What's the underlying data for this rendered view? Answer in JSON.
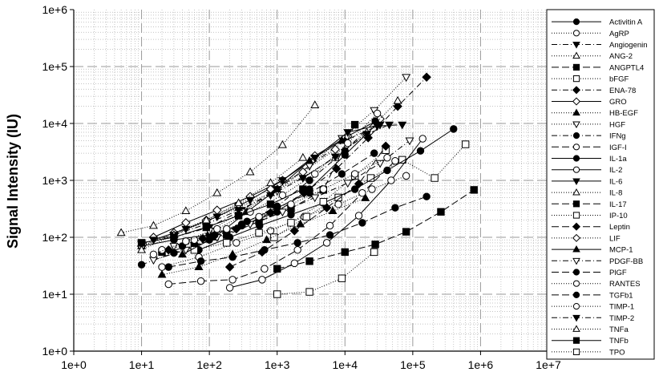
{
  "chart_data": {
    "type": "scatter",
    "title": "",
    "xlabel": "",
    "ylabel": "Signal Intensity (IU)",
    "x_scale": "log",
    "y_scale": "log",
    "xlim": [
      1,
      10000000
    ],
    "ylim": [
      1,
      1000000
    ],
    "x_tick_labels": [
      "1e+0",
      "1e+1",
      "1e+2",
      "1e+3",
      "1e+4",
      "1e+5",
      "1e+6",
      "1e+7"
    ],
    "y_tick_labels": [
      "1e+0",
      "1e+1",
      "1e+2",
      "1e+3",
      "1e+4",
      "1e+5",
      "1e+6"
    ],
    "grid": true,
    "legend_position": "right",
    "series": [
      {
        "name": "Activitin A",
        "marker": "circle",
        "fill": "filled",
        "dash": "solid",
        "x": [
          10,
          30,
          100,
          300,
          1000,
          3000,
          10000,
          30000
        ],
        "y": [
          70,
          90,
          110,
          160,
          280,
          700,
          2800,
          10000
        ]
      },
      {
        "name": "AgRP",
        "marker": "circle",
        "fill": "open",
        "dash": "dot",
        "x": [
          20,
          70,
          250,
          800,
          2500,
          8000,
          25000,
          80000
        ],
        "y": [
          30,
          45,
          80,
          130,
          230,
          380,
          700,
          1200
        ]
      },
      {
        "name": "Angiogenin",
        "marker": "triangle-down",
        "fill": "filled",
        "dash": "dashdot",
        "x": [
          10,
          30,
          100,
          300,
          1000,
          3000,
          10000,
          30000,
          70000
        ],
        "y": [
          80,
          100,
          150,
          300,
          700,
          1800,
          5000,
          9000,
          9500
        ]
      },
      {
        "name": "ANG-2",
        "marker": "triangle-up",
        "fill": "open",
        "dash": "dot",
        "x": [
          5,
          15,
          45,
          130,
          400,
          1200,
          3600
        ],
        "y": [
          120,
          160,
          290,
          600,
          1400,
          4200,
          21000
        ]
      },
      {
        "name": "ANGPTL4",
        "marker": "square",
        "fill": "filled",
        "dash": "longdash",
        "x": [
          1000,
          3000,
          10000,
          28000,
          80000,
          260000,
          800000
        ],
        "y": [
          28,
          38,
          55,
          75,
          125,
          280,
          680
        ]
      },
      {
        "name": "bFGF",
        "marker": "square",
        "fill": "open",
        "dash": "dot",
        "x": [
          900,
          2700,
          8000,
          24000,
          70000,
          210000,
          600000
        ],
        "y": [
          100,
          230,
          500,
          1100,
          2300,
          1100,
          4300
        ]
      },
      {
        "name": "ENA-78",
        "marker": "diamond",
        "fill": "filled",
        "dash": "dashdot",
        "x": [
          25,
          80,
          250,
          800,
          2500,
          7500,
          22000,
          60000,
          160000
        ],
        "y": [
          60,
          95,
          140,
          270,
          600,
          1600,
          5600,
          20000,
          65000
        ]
      },
      {
        "name": "GRO",
        "marker": "diamond",
        "fill": "open",
        "dash": "solid",
        "x": [
          15,
          45,
          130,
          400,
          1200,
          3600,
          11000,
          33000
        ],
        "y": [
          100,
          180,
          300,
          520,
          1000,
          2700,
          6000,
          12000
        ]
      },
      {
        "name": "HB-EGF",
        "marker": "triangle-up",
        "fill": "filled",
        "dash": "dot",
        "x": [
          20,
          70,
          220,
          700,
          2200,
          6600,
          20000
        ],
        "y": [
          22,
          30,
          50,
          90,
          170,
          290,
          490
        ]
      },
      {
        "name": "HGF",
        "marker": "triangle-down",
        "fill": "open",
        "dash": "dot",
        "x": [
          30,
          100,
          300,
          1000,
          3000,
          9000,
          27000,
          80000
        ],
        "y": [
          70,
          130,
          280,
          650,
          1800,
          5500,
          17000,
          65000
        ]
      },
      {
        "name": "IFNg",
        "marker": "circle",
        "fill": "filled",
        "dash": "dashdot",
        "x": [
          10,
          30,
          100,
          300,
          1000,
          3000,
          10000,
          28000
        ],
        "y": [
          33,
          53,
          90,
          170,
          350,
          1000,
          3300,
          11000
        ]
      },
      {
        "name": "IGF-I",
        "marker": "circle",
        "fill": "open",
        "dash": "longdash",
        "x": [
          25,
          75,
          220,
          650,
          2000,
          6000,
          18000,
          55000
        ],
        "y": [
          15,
          17,
          18,
          28,
          60,
          160,
          600,
          2200
        ]
      },
      {
        "name": "IL-1a",
        "marker": "circle",
        "fill": "filled",
        "dash": "solid",
        "x": [
          70,
          200,
          550,
          1600,
          4800,
          14000,
          42000,
          130000,
          400000
        ],
        "y": [
          60,
          100,
          160,
          250,
          400,
          700,
          1500,
          3300,
          8000
        ]
      },
      {
        "name": "IL-2",
        "marker": "circle",
        "fill": "open",
        "dash": "solid",
        "x": [
          200,
          600,
          1800,
          5400,
          16000,
          48000,
          140000
        ],
        "y": [
          13,
          18,
          35,
          80,
          240,
          1000,
          5400
        ]
      },
      {
        "name": "IL-6",
        "marker": "triangle-down",
        "fill": "filled",
        "dash": "solid",
        "x": [
          15,
          45,
          130,
          400,
          1200,
          3600,
          11000,
          33000
        ],
        "y": [
          90,
          140,
          230,
          450,
          1000,
          2500,
          7000,
          9500
        ]
      },
      {
        "name": "IL-8",
        "marker": "triangle-up",
        "fill": "open",
        "dash": "dot",
        "x": [
          10,
          30,
          90,
          270,
          800,
          2400,
          7200,
          21000,
          60000
        ],
        "y": [
          70,
          110,
          190,
          330,
          600,
          1150,
          2500,
          7000,
          25000
        ]
      },
      {
        "name": "IL-17",
        "marker": "square",
        "fill": "filled",
        "dash": "longdash",
        "x": [
          20,
          60,
          180,
          540,
          1600,
          4800,
          14000
        ],
        "y": [
          55,
          70,
          110,
          190,
          320,
          680,
          9500
        ]
      },
      {
        "name": "IP-10",
        "marker": "square",
        "fill": "open",
        "dash": "dot",
        "x": [
          60,
          180,
          540,
          1600,
          4800,
          14000,
          40000
        ],
        "y": [
          60,
          80,
          120,
          180,
          420,
          1200,
          3400
        ]
      },
      {
        "name": "Leptin",
        "marker": "diamond",
        "fill": "filled",
        "dash": "longdash",
        "x": [
          200,
          600,
          1800,
          5400,
          16000,
          40000
        ],
        "y": [
          30,
          55,
          130,
          330,
          870,
          4000
        ]
      },
      {
        "name": "LIF",
        "marker": "diamond",
        "fill": "open",
        "dash": "dot",
        "x": [
          10,
          30,
          90,
          270,
          800,
          2400,
          7200
        ],
        "y": [
          70,
          120,
          200,
          380,
          700,
          1400,
          3500
        ]
      },
      {
        "name": "MCP-1",
        "marker": "triangle-up",
        "fill": "filled",
        "dash": "solid",
        "x": [
          40,
          120,
          360,
          1000,
          3000,
          9000
        ],
        "y": [
          50,
          100,
          280,
          700,
          2200,
          5000
        ]
      },
      {
        "name": "PDGF-BB",
        "marker": "triangle-down",
        "fill": "open",
        "dash": "dashdot",
        "x": [
          15,
          45,
          130,
          400,
          1200,
          3600,
          11000,
          33000,
          90000
        ],
        "y": [
          40,
          60,
          100,
          170,
          280,
          500,
          900,
          2000,
          5000
        ]
      },
      {
        "name": "PlGF",
        "marker": "circle",
        "fill": "filled",
        "dash": "longdash",
        "x": [
          40,
          120,
          360,
          1000,
          3000,
          9000,
          27000
        ],
        "y": [
          70,
          110,
          190,
          330,
          600,
          1300,
          3000
        ]
      },
      {
        "name": "RANTES",
        "marker": "circle",
        "fill": "open",
        "dash": "dot",
        "x": [
          20,
          60,
          180,
          540,
          1600,
          4800,
          14000,
          42000
        ],
        "y": [
          60,
          90,
          140,
          230,
          380,
          700,
          1300,
          2500
        ]
      },
      {
        "name": "TGFb1",
        "marker": "circle",
        "fill": "filled",
        "dash": "longdash",
        "x": [
          25,
          75,
          220,
          650,
          2000,
          6000,
          18000,
          55000,
          160000
        ],
        "y": [
          30,
          38,
          45,
          60,
          80,
          110,
          180,
          330,
          520
        ]
      },
      {
        "name": "TIMP-1",
        "marker": "circle",
        "fill": "open",
        "dash": "dot",
        "x": [
          15,
          45,
          130,
          400,
          1200,
          3600,
          11000,
          30000
        ],
        "y": [
          50,
          85,
          140,
          280,
          550,
          1300,
          4500,
          15000
        ]
      },
      {
        "name": "TIMP-2",
        "marker": "triangle-down",
        "fill": "filled",
        "dash": "dashdot",
        "x": [
          10,
          30,
          90,
          270,
          800,
          2400,
          7200,
          21000,
          45000
        ],
        "y": [
          75,
          110,
          170,
          300,
          550,
          1100,
          2600,
          6500,
          9500
        ]
      },
      {
        "name": "TNFa",
        "marker": "triangle-up",
        "fill": "open",
        "dash": "dot",
        "x": [
          10,
          30,
          90,
          270,
          800,
          2400
        ],
        "y": [
          60,
          110,
          200,
          400,
          900,
          2500
        ]
      },
      {
        "name": "TNFb",
        "marker": "square",
        "fill": "filled",
        "dash": "solid",
        "x": [
          10,
          30,
          90,
          270,
          800,
          2400
        ],
        "y": [
          80,
          100,
          150,
          240,
          380,
          700
        ]
      },
      {
        "name": "TPO",
        "marker": "square",
        "fill": "open",
        "dash": "dot",
        "x": [
          1000,
          3000,
          9000,
          27000
        ],
        "y": [
          10,
          11,
          19,
          55
        ]
      }
    ]
  }
}
